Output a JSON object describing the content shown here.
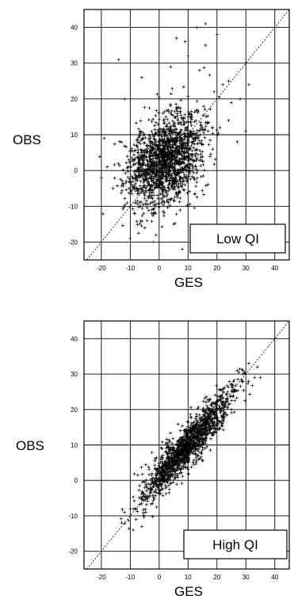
{
  "chart_data": [
    {
      "type": "scatter",
      "title": "",
      "xlabel": "GES",
      "ylabel": "OBS",
      "xlim": [
        -26,
        45
      ],
      "ylim": [
        -25,
        45
      ],
      "xticks": [
        -20,
        -10,
        0,
        10,
        20,
        30,
        40
      ],
      "yticks": [
        -20,
        -10,
        0,
        10,
        20,
        30,
        40
      ],
      "grid": true,
      "reference_line": "y = x",
      "legend": {
        "label": "Low QI",
        "placement": "bottom-right"
      },
      "series": [
        {
          "marker": "+",
          "color": "#000000",
          "cloud": {
            "cx": 2,
            "cy": 3,
            "sx": 6.5,
            "sy": 6.5,
            "rho": 0.35,
            "n": 1700,
            "seed": 11
          },
          "outliers": [
            [
              20,
              38
            ],
            [
              16,
              35
            ],
            [
              10,
              32
            ],
            [
              -14,
              31
            ],
            [
              4,
              29
            ],
            [
              14,
              28
            ],
            [
              22,
              24
            ],
            [
              19,
              22
            ],
            [
              24,
              25
            ],
            [
              28,
              20
            ],
            [
              25,
              19
            ],
            [
              -6,
              26
            ],
            [
              -12,
              20
            ],
            [
              30,
              11
            ],
            [
              27,
              8
            ],
            [
              9,
              36
            ],
            [
              6,
              37
            ],
            [
              16,
              41
            ],
            [
              13,
              40
            ],
            [
              -16,
              -5
            ],
            [
              -10,
              -19
            ],
            [
              -2,
              -20
            ],
            [
              8,
              -22
            ],
            [
              5,
              -15
            ],
            [
              -18,
              1
            ],
            [
              -20,
              -2
            ],
            [
              -19,
              9
            ],
            [
              21,
              12
            ],
            [
              24,
              14
            ],
            [
              31,
              24
            ]
          ]
        }
      ]
    },
    {
      "type": "scatter",
      "title": "",
      "xlabel": "GES",
      "ylabel": "OBS",
      "xlim": [
        -26,
        45
      ],
      "ylim": [
        -25,
        45
      ],
      "xticks": [
        -20,
        -10,
        0,
        10,
        20,
        30,
        40
      ],
      "yticks": [
        -20,
        -10,
        0,
        10,
        20,
        30,
        40
      ],
      "grid": true,
      "reference_line": "y = x",
      "legend": {
        "label": "High QI",
        "placement": "bottom-right"
      },
      "series": [
        {
          "marker": "+",
          "color": "#000000",
          "cloud": {
            "along_min": -12,
            "along_max": 30,
            "along_center": 10,
            "along_sd": 7.5,
            "perp_sd": 2.2,
            "n": 1500,
            "seed": 29
          },
          "outliers": [
            [
              -12,
              -9
            ],
            [
              -13,
              -12
            ],
            [
              -8,
              -11
            ],
            [
              -10,
              -8
            ],
            [
              34,
              32
            ],
            [
              31,
              33
            ],
            [
              29,
              30
            ],
            [
              33,
              29
            ],
            [
              35,
              29
            ],
            [
              27,
              31
            ],
            [
              -6,
              -13
            ],
            [
              -9,
              -14
            ],
            [
              25,
              20
            ],
            [
              22,
              16
            ]
          ]
        }
      ]
    }
  ]
}
